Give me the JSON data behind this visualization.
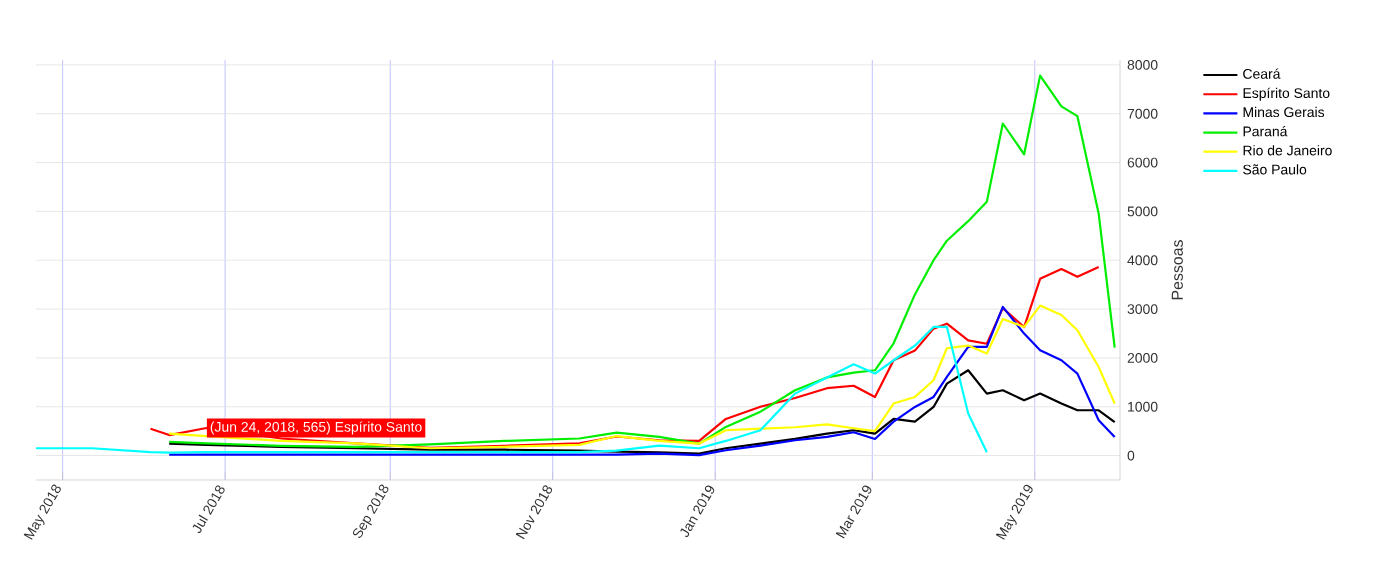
{
  "chart_data": {
    "type": "line",
    "ylabel": "Pessoas",
    "x": [
      "2018-04-21",
      "2018-05-12",
      "2018-06-03",
      "2018-06-10",
      "2018-06-24",
      "2018-07-22",
      "2018-08-19",
      "2018-09-16",
      "2018-10-14",
      "2018-11-11",
      "2018-11-25",
      "2018-12-11",
      "2018-12-26",
      "2019-01-05",
      "2019-01-18",
      "2019-01-31",
      "2019-02-12",
      "2019-02-22",
      "2019-03-02",
      "2019-03-09",
      "2019-03-17",
      "2019-03-24",
      "2019-03-29",
      "2019-04-06",
      "2019-04-13",
      "2019-04-19",
      "2019-04-27",
      "2019-05-03",
      "2019-05-11",
      "2019-05-17",
      "2019-05-25",
      "2019-05-31"
    ],
    "series": [
      {
        "name": "Ceará",
        "color": "#000000",
        "values": [
          null,
          null,
          null,
          245,
          220,
          180,
          150,
          120,
          120,
          100,
          80,
          68,
          41,
          150,
          246,
          341,
          450,
          519,
          450,
          751,
          696,
          996,
          1474,
          1747,
          1269,
          1338,
          1133,
          1269,
          1065,
          928,
          928,
          683
        ]
      },
      {
        "name": "Espírito Santo",
        "color": "#ff0000",
        "values": [
          null,
          null,
          550,
          420,
          565,
          350,
          250,
          160,
          200,
          250,
          390,
          314,
          300,
          750,
          1000,
          1180,
          1380,
          1430,
          1200,
          1950,
          2150,
          2600,
          2700,
          2360,
          2290,
          3020,
          2630,
          3620,
          3820,
          3660,
          3860,
          null
        ]
      },
      {
        "name": "Minas Gerais",
        "color": "#0000ff",
        "values": [
          null,
          null,
          null,
          20,
          20,
          20,
          20,
          20,
          20,
          20,
          20,
          41,
          10,
          109,
          205,
          314,
          382,
          478,
          341,
          696,
          996,
          1200,
          1610,
          2225,
          2225,
          3044,
          2498,
          2157,
          1952,
          1679,
          723,
          382
        ]
      },
      {
        "name": "Paraná",
        "color": "#00ee00",
        "values": [
          null,
          null,
          null,
          280,
          250,
          200,
          180,
          230,
          300,
          350,
          470,
          382,
          246,
          587,
          900,
          1338,
          1600,
          1700,
          1747,
          2300,
          3300,
          4000,
          4400,
          4800,
          5200,
          6800,
          6170,
          7780,
          7150,
          6950,
          4950,
          2210
        ]
      },
      {
        "name": "Rio de Janeiro",
        "color": "#ffff00",
        "values": [
          null,
          null,
          null,
          450,
          400,
          300,
          250,
          150,
          180,
          220,
          400,
          300,
          246,
          519,
          550,
          580,
          640,
          560,
          500,
          1065,
          1201,
          1542,
          2198,
          2252,
          2088,
          2798,
          2634,
          3071,
          2880,
          2566,
          1815,
          1065
        ]
      },
      {
        "name": "São Paulo",
        "color": "#00ffff",
        "values": [
          150,
          150,
          70,
          60,
          70,
          70,
          70,
          70,
          70,
          70,
          100,
          205,
          150,
          300,
          520,
          1269,
          1600,
          1870,
          1679,
          1952,
          2250,
          2634,
          2634,
          860,
          68,
          null,
          null,
          null,
          null,
          null,
          null,
          null
        ]
      }
    ],
    "xlim": [
      "2018-04-21",
      "2019-06-02"
    ],
    "ylim": [
      -500,
      8100
    ],
    "xticks": [
      {
        "value": "2018-05-01",
        "label": "May 2018"
      },
      {
        "value": "2018-07-01",
        "label": "Jul 2018"
      },
      {
        "value": "2018-09-01",
        "label": "Sep 2018"
      },
      {
        "value": "2018-11-01",
        "label": "Nov 2018"
      },
      {
        "value": "2019-01-01",
        "label": "Jan 2019"
      },
      {
        "value": "2019-03-01",
        "label": "Mar 2019"
      },
      {
        "value": "2019-05-01",
        "label": "May 2019"
      }
    ],
    "yticks": [
      0,
      1000,
      2000,
      3000,
      4000,
      5000,
      6000,
      7000,
      8000
    ],
    "grid": true,
    "legend": "top right",
    "annotations": [
      {
        "text": "(Jun 24, 2018, 565) Espírito Santo",
        "x": "2018-06-24",
        "y": 565
      }
    ]
  }
}
